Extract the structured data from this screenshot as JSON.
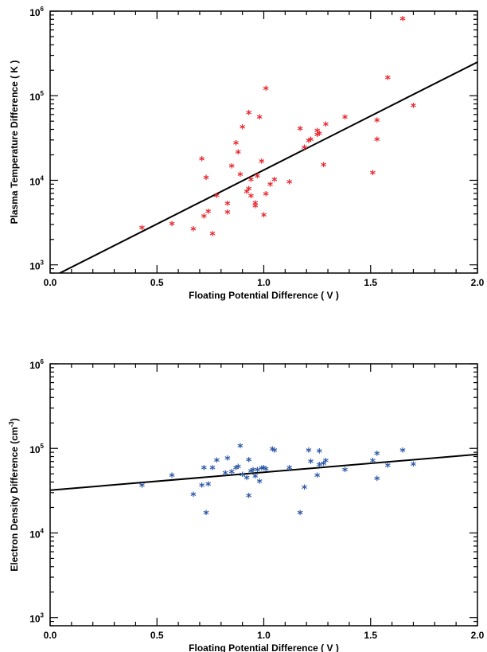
{
  "chart_data": [
    {
      "type": "scatter",
      "xlabel": "Floating Potential Difference ( V )",
      "ylabel": "Plasma Temperature Difference ( K )",
      "xlim": [
        0.0,
        2.0
      ],
      "ylim": [
        800,
        1000000
      ],
      "y_scale": "log",
      "x_ticks": [
        "0.0",
        "0.5",
        "1.0",
        "1.5",
        "2.0"
      ],
      "y_ticks": [
        {
          "base": "10",
          "exp": "3"
        },
        {
          "base": "10",
          "exp": "4"
        },
        {
          "base": "10",
          "exp": "5"
        },
        {
          "base": "10",
          "exp": "6"
        }
      ],
      "marker": "*",
      "marker_color": "#e8232a",
      "fit_line": {
        "color": "#000000",
        "x": [
          0.0,
          2.0
        ],
        "y": [
          700,
          250000
        ]
      },
      "series": [
        {
          "x": [
            0.43,
            0.57,
            0.67,
            0.71,
            0.72,
            0.73,
            0.74,
            0.76,
            0.78,
            0.83,
            0.83,
            0.85,
            0.87,
            0.88,
            0.89,
            0.9,
            0.92,
            0.93,
            0.93,
            0.94,
            0.94,
            0.96,
            0.96,
            0.97,
            0.98,
            0.99,
            1.0,
            1.01,
            1.01,
            1.03,
            1.05,
            1.12,
            1.17,
            1.19,
            1.21,
            1.22,
            1.25,
            1.25,
            1.26,
            1.28,
            1.29,
            1.38,
            1.51,
            1.53,
            1.53,
            1.58,
            1.65,
            1.7
          ],
          "y": [
            2700,
            3000,
            2600,
            17500,
            3700,
            10500,
            4200,
            2300,
            6500,
            5200,
            4100,
            14500,
            27000,
            21000,
            11500,
            42000,
            7200,
            62000,
            7800,
            10000,
            6400,
            5300,
            4900,
            11000,
            55000,
            16500,
            3800,
            6800,
            120000,
            8800,
            10000,
            9400,
            40000,
            24000,
            29000,
            30000,
            34000,
            38000,
            35000,
            15000,
            45000,
            55000,
            12000,
            50000,
            30000,
            160000,
            800000,
            75000
          ]
        }
      ]
    },
    {
      "type": "scatter",
      "xlabel": "Floating Potential Difference ( V )",
      "ylabel": "Electron Density Difference (cm",
      "ylabel_sup": "-3",
      "ylabel_end": ")",
      "xlim": [
        0.0,
        2.0
      ],
      "ylim": [
        800,
        1000000
      ],
      "y_scale": "log",
      "x_ticks": [
        "0.0",
        "0.5",
        "1.0",
        "1.5",
        "2.0"
      ],
      "y_ticks": [
        {
          "base": "10",
          "exp": "3"
        },
        {
          "base": "10",
          "exp": "4"
        },
        {
          "base": "10",
          "exp": "5"
        },
        {
          "base": "10",
          "exp": "6"
        }
      ],
      "marker": "*",
      "marker_color": "#2a56a6",
      "fit_line": {
        "color": "#000000",
        "x": [
          0.0,
          2.0
        ],
        "y": [
          32000,
          85000
        ]
      },
      "series": [
        {
          "x": [
            0.43,
            0.57,
            0.67,
            0.71,
            0.72,
            0.73,
            0.74,
            0.76,
            0.78,
            0.82,
            0.83,
            0.85,
            0.87,
            0.88,
            0.89,
            0.9,
            0.92,
            0.93,
            0.93,
            0.94,
            0.95,
            0.96,
            0.97,
            0.98,
            0.99,
            1.0,
            1.01,
            1.04,
            1.05,
            1.12,
            1.17,
            1.19,
            1.21,
            1.22,
            1.25,
            1.26,
            1.26,
            1.28,
            1.29,
            1.38,
            1.51,
            1.53,
            1.53,
            1.58,
            1.65,
            1.7
          ],
          "y": [
            36000,
            47000,
            28000,
            36000,
            58000,
            17000,
            37000,
            58000,
            71000,
            50000,
            75000,
            52000,
            58000,
            60000,
            105000,
            48000,
            44000,
            27000,
            72000,
            53000,
            55000,
            46000,
            55000,
            40000,
            57000,
            58000,
            56000,
            96000,
            93000,
            58000,
            17000,
            34000,
            93000,
            69000,
            47000,
            91000,
            63000,
            65000,
            70000,
            55000,
            70000,
            43000,
            85000,
            62000,
            93000,
            64000
          ]
        }
      ]
    }
  ]
}
